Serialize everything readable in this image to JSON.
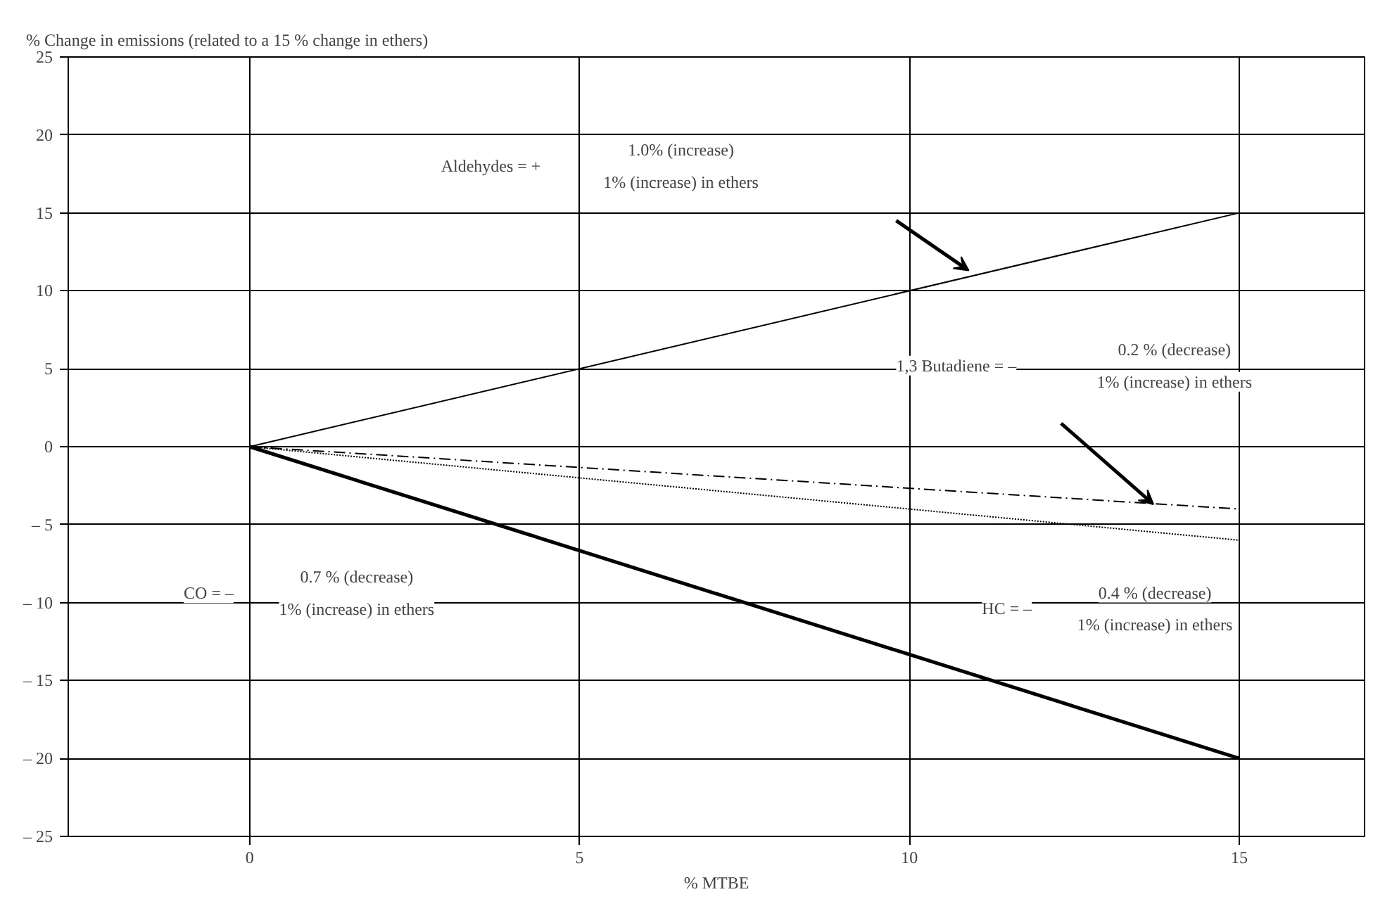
{
  "chart_data": {
    "type": "line",
    "ylabel": "% Change in emissions (related to a 15 % change in ethers)",
    "xlabel": "% MTBE",
    "x": [
      0,
      15
    ],
    "series": [
      {
        "color": "#000000",
        "values": [
          0,
          15
        ],
        "line_style": "solid"
      },
      {
        "color": "#000000",
        "values": [
          0,
          -4
        ],
        "line_style": "dashdot"
      },
      {
        "color": "#000000",
        "values": [
          0,
          -6
        ],
        "line_style": "dotted"
      },
      {
        "color": "#000000",
        "values": [
          0,
          -20
        ],
        "line_style": "solid"
      }
    ],
    "xlim": [
      -2.75,
      16.9
    ],
    "xticks": [
      0,
      5,
      10,
      15
    ],
    "ylim": [
      -25,
      25
    ],
    "yticks": [
      {
        "value": -25,
        "label": "– 25"
      },
      {
        "value": -20,
        "label": "– 20"
      },
      {
        "value": -15,
        "label": "– 15"
      },
      {
        "value": -10,
        "label": "– 10"
      },
      {
        "value": -5,
        "label": "– 5"
      },
      0,
      5,
      10,
      15,
      20,
      25
    ],
    "grid": true,
    "marker": "none",
    "annotations": [
      "Aldehydes = +",
      "1.0% (increase)",
      "1% (increase) in ethers",
      "1,3 Butadiene = –",
      "0.2 % (decrease)",
      "1% (increase) in ethers",
      "HC = –",
      "0.4 % (decrease)",
      "1% (increase) in ethers",
      "CO = –",
      "0.7 % (decrease)",
      "1% (increase) in ethers"
    ]
  }
}
